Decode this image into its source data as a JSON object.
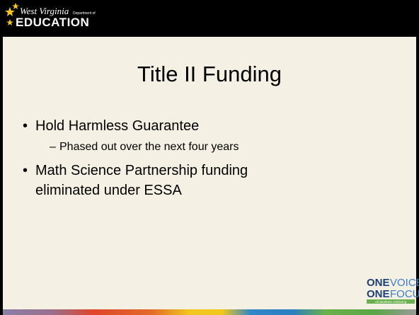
{
  "header": {
    "logo_script": "West Virginia",
    "logo_dept": "Department of",
    "logo_main": "EDUCATION"
  },
  "title": "Title II Funding",
  "bullets": [
    {
      "text": "Hold Harmless Guarantee",
      "sub": [
        "Phased out over the next four years"
      ]
    },
    {
      "text": "Math Science Partnership funding",
      "continuation": "eliminated under ESSA"
    }
  ],
  "footer_logo": {
    "one_1": "ONE",
    "voice": "VOICE",
    "one_2": "ONE",
    "focus": "FOCUS",
    "tagline": "All Students Achieving"
  }
}
